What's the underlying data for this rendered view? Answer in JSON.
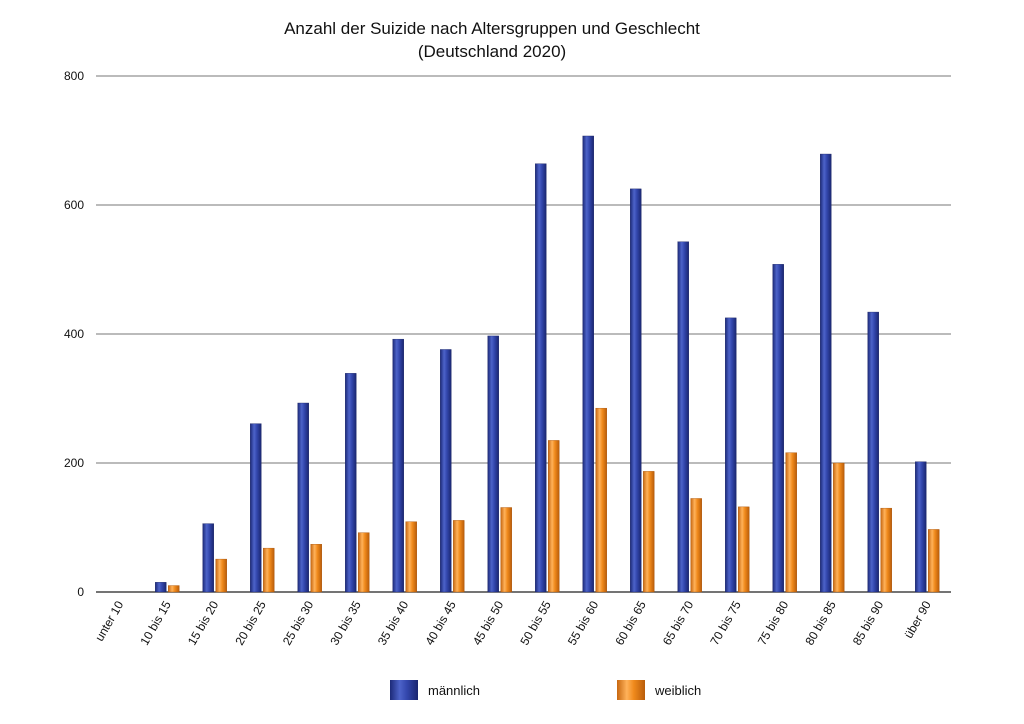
{
  "chart_data": {
    "type": "bar",
    "title": "Anzahl der Suizide nach Altersgruppen und Geschlecht",
    "subtitle": "(Deutschland 2020)",
    "xlabel": "",
    "ylabel": "",
    "ylim": [
      0,
      800
    ],
    "yticks": [
      0,
      200,
      400,
      600,
      800
    ],
    "grid": true,
    "legend_position": "bottom",
    "categories": [
      "unter 10",
      "10 bis 15",
      "15 bis 20",
      "20 bis 25",
      "25 bis 30",
      "30 bis 35",
      "35 bis 40",
      "40 bis 45",
      "45 bis 50",
      "50 bis 55",
      "55 bis 60",
      "60 bis 65",
      "65 bis 70",
      "70 bis 75",
      "75 bis 80",
      "80 bis 85",
      "85 bis 90",
      "über 90"
    ],
    "series": [
      {
        "name": "männlich",
        "color": "#2c3f9c",
        "values": [
          0,
          15,
          106,
          261,
          293,
          339,
          392,
          376,
          397,
          664,
          707,
          625,
          543,
          425,
          508,
          679,
          434,
          202
        ]
      },
      {
        "name": "weiblich",
        "color": "#f08a1c",
        "values": [
          0,
          10,
          51,
          68,
          74,
          92,
          109,
          111,
          131,
          235,
          285,
          187,
          145,
          132,
          216,
          200,
          130,
          97
        ]
      }
    ]
  }
}
